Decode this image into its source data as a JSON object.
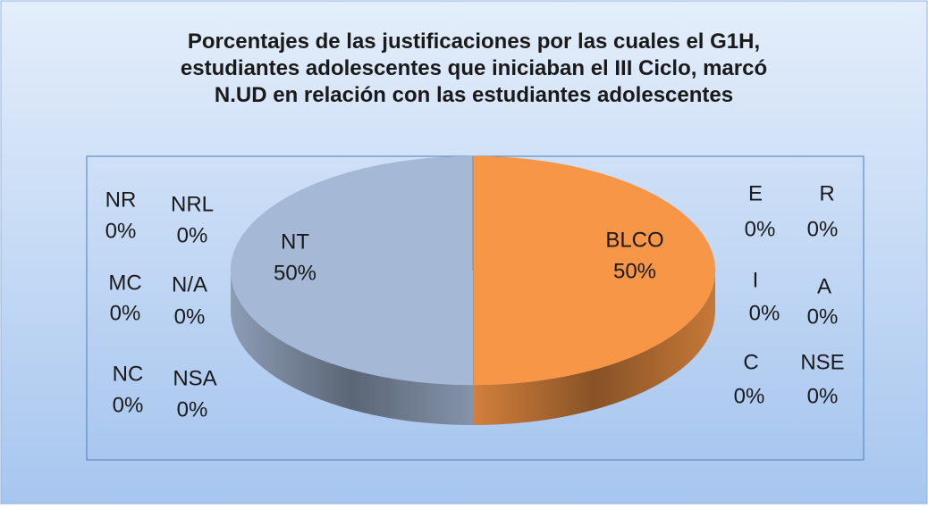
{
  "chart_data": {
    "type": "pie",
    "title": "Porcentajes de las justificaciones por las cuales el G1H, estudiantes adolescentes que iniciaban el III Ciclo, marcó N.UD en relación con las estudiantes adolescentes",
    "categories": [
      "BLCO",
      "E",
      "R",
      "I",
      "A",
      "C",
      "NSE",
      "NT",
      "NSA",
      "NC",
      "N/A",
      "MC",
      "NRL",
      "NR"
    ],
    "values": [
      50,
      0,
      0,
      0,
      0,
      0,
      0,
      50,
      0,
      0,
      0,
      0,
      0,
      0
    ],
    "value_labels": [
      "50%",
      "0%",
      "0%",
      "0%",
      "0%",
      "0%",
      "0%",
      "50%",
      "0%",
      "0%",
      "0%",
      "0%",
      "0%",
      "0%"
    ],
    "colors": [
      "#f79646",
      "#4f81bd",
      "#c0504d",
      "#9bbb59",
      "#8064a2",
      "#4bacc6",
      "#2c4d75",
      "#a5b8d5",
      "#772c2a",
      "#5f7530",
      "#4d3b62",
      "#276a7c",
      "#b65708",
      "#729aca"
    ],
    "legend": false
  }
}
